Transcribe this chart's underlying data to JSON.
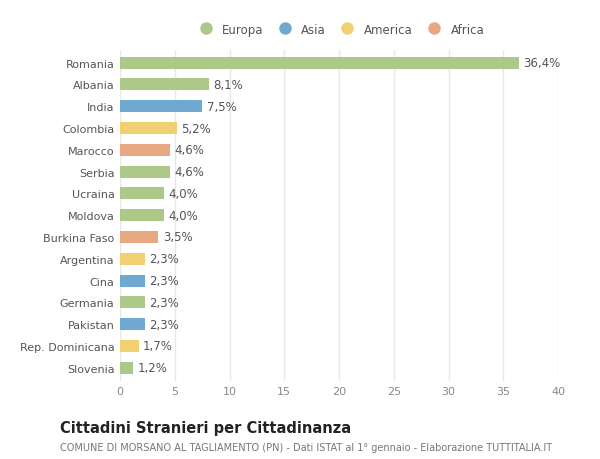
{
  "categories": [
    "Romania",
    "Albania",
    "India",
    "Colombia",
    "Marocco",
    "Serbia",
    "Ucraina",
    "Moldova",
    "Burkina Faso",
    "Argentina",
    "Cina",
    "Germania",
    "Pakistan",
    "Rep. Dominicana",
    "Slovenia"
  ],
  "values": [
    36.4,
    8.1,
    7.5,
    5.2,
    4.6,
    4.6,
    4.0,
    4.0,
    3.5,
    2.3,
    2.3,
    2.3,
    2.3,
    1.7,
    1.2
  ],
  "labels": [
    "36,4%",
    "8,1%",
    "7,5%",
    "5,2%",
    "4,6%",
    "4,6%",
    "4,0%",
    "4,0%",
    "3,5%",
    "2,3%",
    "2,3%",
    "2,3%",
    "2,3%",
    "1,7%",
    "1,2%"
  ],
  "continents": [
    "Europa",
    "Europa",
    "Asia",
    "America",
    "Africa",
    "Europa",
    "Europa",
    "Europa",
    "Africa",
    "America",
    "Asia",
    "Europa",
    "Asia",
    "America",
    "Europa"
  ],
  "colors": {
    "Europa": "#adc98a",
    "Asia": "#6fa8d0",
    "America": "#f0d070",
    "Africa": "#e8a882"
  },
  "legend_order": [
    "Europa",
    "Asia",
    "America",
    "Africa"
  ],
  "xlim": [
    0,
    40
  ],
  "xticks": [
    0,
    5,
    10,
    15,
    20,
    25,
    30,
    35,
    40
  ],
  "title": "Cittadini Stranieri per Cittadinanza",
  "subtitle": "COMUNE DI MORSANO AL TAGLIAMENTO (PN) - Dati ISTAT al 1° gennaio - Elaborazione TUTTITALIA.IT",
  "bg_color": "#ffffff",
  "plot_bg_color": "#ffffff",
  "bar_height": 0.55,
  "label_fontsize": 8.5,
  "title_fontsize": 10.5,
  "subtitle_fontsize": 7.0,
  "tick_label_fontsize": 8.0,
  "axis_tick_fontsize": 8.0,
  "grid_color": "#e8e8e8"
}
